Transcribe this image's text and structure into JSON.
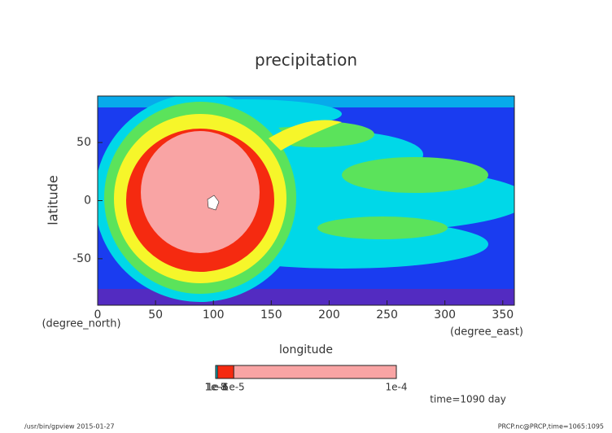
{
  "chart_data": {
    "type": "contour",
    "title": "precipitation",
    "xlabel": "longitude",
    "xunits": "(degree_east)",
    "ylabel": "latitude",
    "yunits": "(degree_north)",
    "xlim": [
      0,
      360
    ],
    "xticks": [
      0,
      50,
      100,
      150,
      200,
      250,
      300,
      350
    ],
    "ylim": [
      -90,
      90
    ],
    "yticks": [
      -50,
      0,
      50
    ],
    "colorbar": {
      "lim": [
        0,
        0.0001
      ],
      "ticks": [
        {
          "value": 1e-08,
          "label": "1e-8"
        },
        {
          "value": 1e-07,
          "label": "1e-7"
        },
        {
          "value": 1e-06,
          "label": "1e-6"
        },
        {
          "value": 1e-05,
          "label": "1e-5"
        },
        {
          "value": 0.0001,
          "label": "1e-4"
        }
      ],
      "colors": [
        "#7a1fa2",
        "#1a3cf0",
        "#00d8e8",
        "#f52a10",
        "#f9a4a4"
      ]
    },
    "annotation": "time=1090 day",
    "footer_left": "/usr/bin/gpview  2015-01-27",
    "footer_right": "PRCP.nc@PRCP,time=1065:1095"
  }
}
